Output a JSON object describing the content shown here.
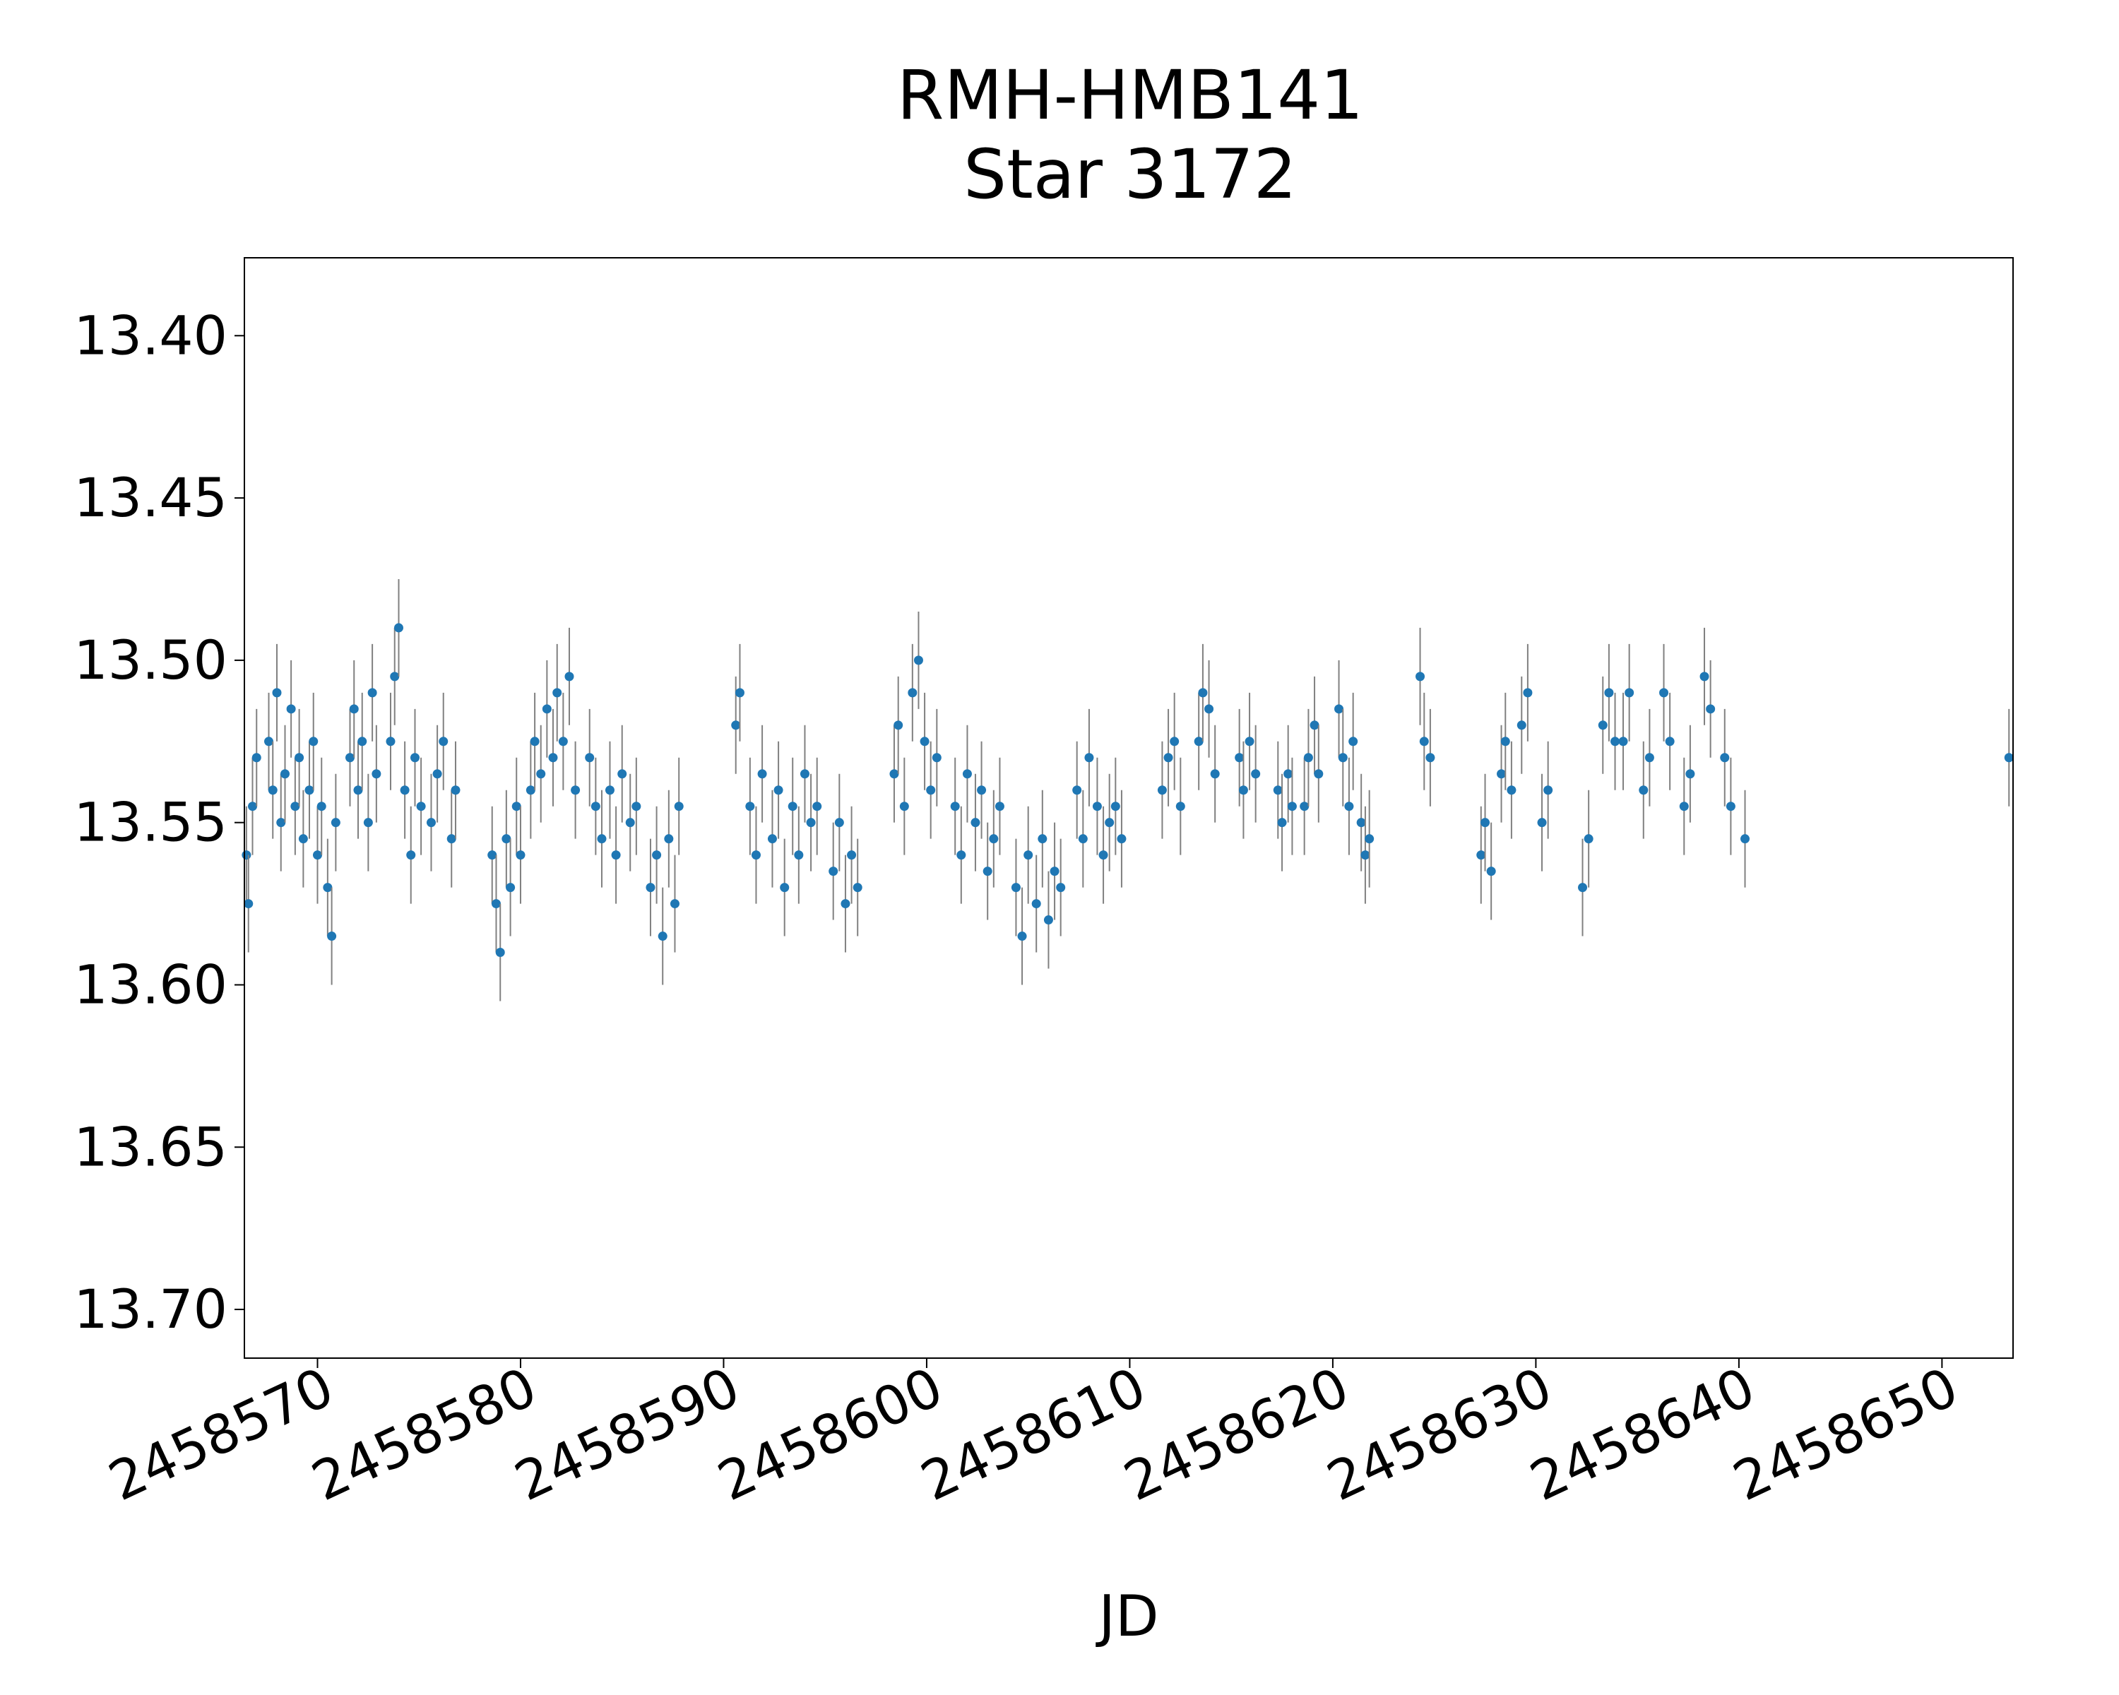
{
  "chart_data": {
    "type": "scatter",
    "title": [
      "RMH-HMB141",
      "Star 3172"
    ],
    "xlabel": "JD",
    "ylabel": "",
    "xlim": [
      2458566.4,
      2458653.5
    ],
    "ylim": [
      13.715,
      13.376
    ],
    "y_inverted": true,
    "x_ticks": [
      2458570,
      2458580,
      2458590,
      2458600,
      2458610,
      2458620,
      2458630,
      2458640,
      2458650
    ],
    "y_ticks": [
      13.4,
      13.45,
      13.5,
      13.55,
      13.6,
      13.65,
      13.7
    ],
    "x_tick_labels": [
      "2458570",
      "2458580",
      "2458590",
      "2458600",
      "2458610",
      "2458620",
      "2458630",
      "2458640",
      "2458650"
    ],
    "y_tick_labels": [
      "13.40",
      "13.45",
      "13.50",
      "13.55",
      "13.60",
      "13.65",
      "13.70"
    ],
    "grid": false,
    "legend": "none",
    "marker_color": "#1f77b4",
    "errorbar_color": "#808080",
    "typical_error": 0.015,
    "series": [
      {
        "x": [
          2458566.5,
          2458566.6,
          2458566.8,
          2458567.0,
          2458567.6,
          2458567.8,
          2458568.0,
          2458568.2,
          2458568.4,
          2458568.7,
          2458568.9,
          2458569.1,
          2458569.3,
          2458569.6,
          2458569.8,
          2458570.0,
          2458570.2,
          2458570.5,
          2458570.7,
          2458570.9,
          2458571.6,
          2458571.8,
          2458572.0,
          2458572.2,
          2458572.5,
          2458572.7,
          2458572.9,
          2458573.6,
          2458573.8,
          2458574.0,
          2458574.3,
          2458574.6,
          2458574.8,
          2458575.1,
          2458575.6,
          2458575.9,
          2458576.2,
          2458576.6,
          2458576.8,
          2458578.6,
          2458578.8,
          2458579.0,
          2458579.3,
          2458579.5,
          2458579.8,
          2458580.0,
          2458580.5,
          2458580.7,
          2458581.0,
          2458581.3,
          2458581.6,
          2458581.8,
          2458582.1,
          2458582.4,
          2458582.7,
          2458583.4,
          2458583.7,
          2458584.0,
          2458584.4,
          2458584.7,
          2458585.0,
          2458585.4,
          2458585.7,
          2458586.4,
          2458586.7,
          2458587.0,
          2458587.3,
          2458587.6,
          2458587.8,
          2458590.6,
          2458590.8,
          2458591.3,
          2458591.6,
          2458591.9,
          2458592.4,
          2458592.7,
          2458593.0,
          2458593.4,
          2458593.7,
          2458594.0,
          2458594.3,
          2458594.6,
          2458595.4,
          2458595.7,
          2458596.0,
          2458596.3,
          2458596.6,
          2458598.4,
          2458598.6,
          2458598.9,
          2458599.3,
          2458599.6,
          2458599.9,
          2458600.2,
          2458600.5,
          2458601.4,
          2458601.7,
          2458602.0,
          2458602.4,
          2458602.7,
          2458603.0,
          2458603.3,
          2458603.6,
          2458604.4,
          2458604.7,
          2458605.0,
          2458605.4,
          2458605.7,
          2458606.0,
          2458606.3,
          2458606.6,
          2458607.4,
          2458607.7,
          2458608.0,
          2458608.4,
          2458608.7,
          2458609.0,
          2458609.3,
          2458609.6,
          2458611.6,
          2458611.9,
          2458612.2,
          2458612.5,
          2458613.4,
          2458613.6,
          2458613.9,
          2458614.2,
          2458615.4,
          2458615.6,
          2458615.9,
          2458616.2,
          2458617.3,
          2458617.5,
          2458617.8,
          2458618.0,
          2458618.6,
          2458618.8,
          2458619.1,
          2458619.3,
          2458620.3,
          2458620.5,
          2458620.8,
          2458621.0,
          2458621.4,
          2458621.6,
          2458621.8,
          2458624.3,
          2458624.5,
          2458624.8,
          2458627.3,
          2458627.5,
          2458627.8,
          2458628.3,
          2458628.5,
          2458628.8,
          2458629.3,
          2458629.6,
          2458630.3,
          2458630.6,
          2458632.3,
          2458632.6,
          2458633.3,
          2458633.6,
          2458633.9,
          2458634.3,
          2458634.6,
          2458635.3,
          2458635.6,
          2458636.3,
          2458636.6,
          2458637.3,
          2458637.6,
          2458638.3,
          2458638.6,
          2458639.3,
          2458639.6,
          2458640.3,
          2458653.3
        ],
        "y": [
          13.56,
          13.575,
          13.545,
          13.53,
          13.525,
          13.54,
          13.51,
          13.55,
          13.535,
          13.515,
          13.545,
          13.53,
          13.555,
          13.54,
          13.525,
          13.56,
          13.545,
          13.57,
          13.585,
          13.55,
          13.53,
          13.515,
          13.54,
          13.525,
          13.55,
          13.51,
          13.535,
          13.525,
          13.505,
          13.49,
          13.54,
          13.56,
          13.53,
          13.545,
          13.55,
          13.535,
          13.525,
          13.555,
          13.54,
          13.56,
          13.575,
          13.59,
          13.555,
          13.57,
          13.545,
          13.56,
          13.54,
          13.525,
          13.535,
          13.515,
          13.53,
          13.51,
          13.525,
          13.505,
          13.54,
          13.53,
          13.545,
          13.555,
          13.54,
          13.56,
          13.535,
          13.55,
          13.545,
          13.57,
          13.56,
          13.585,
          13.555,
          13.575,
          13.545,
          13.52,
          13.51,
          13.545,
          13.56,
          13.535,
          13.555,
          13.54,
          13.57,
          13.545,
          13.56,
          13.535,
          13.55,
          13.545,
          13.565,
          13.55,
          13.575,
          13.56,
          13.57,
          13.535,
          13.52,
          13.545,
          13.51,
          13.5,
          13.525,
          13.54,
          13.53,
          13.545,
          13.56,
          13.535,
          13.55,
          13.54,
          13.565,
          13.555,
          13.545,
          13.57,
          13.585,
          13.56,
          13.575,
          13.555,
          13.58,
          13.565,
          13.57,
          13.54,
          13.555,
          13.53,
          13.545,
          13.56,
          13.55,
          13.545,
          13.555,
          13.54,
          13.53,
          13.525,
          13.545,
          13.525,
          13.51,
          13.515,
          13.535,
          13.53,
          13.54,
          13.525,
          13.535,
          13.54,
          13.55,
          13.535,
          13.545,
          13.545,
          13.53,
          13.52,
          13.535,
          13.515,
          13.53,
          13.545,
          13.525,
          13.55,
          13.56,
          13.555,
          13.505,
          13.525,
          13.53,
          13.56,
          13.55,
          13.565,
          13.535,
          13.525,
          13.54,
          13.52,
          13.51,
          13.55,
          13.54,
          13.57,
          13.555,
          13.52,
          13.51,
          13.525,
          13.525,
          13.51,
          13.54,
          13.53,
          13.51,
          13.525,
          13.545,
          13.535,
          13.505,
          13.515,
          13.53,
          13.545,
          13.555,
          13.53
        ]
      }
    ]
  }
}
